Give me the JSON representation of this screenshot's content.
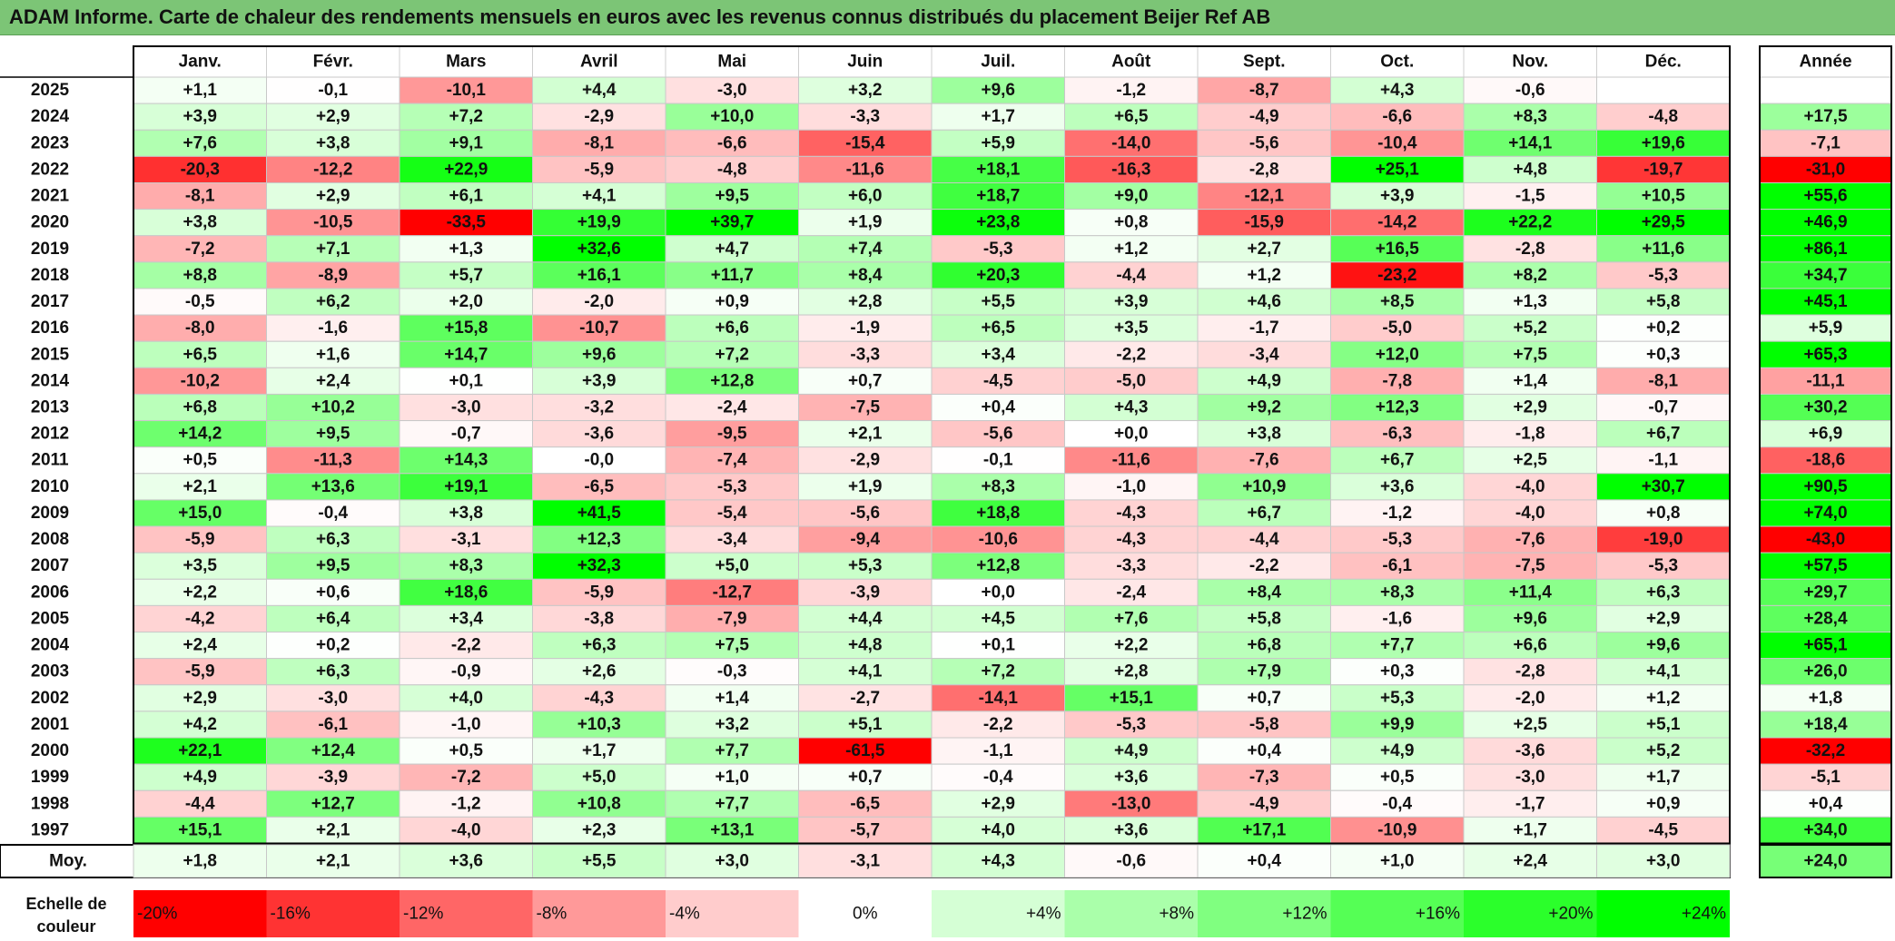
{
  "title": "ADAM Informe. Carte de chaleur des rendements mensuels en euros avec les revenus connus distribués du placement Beijer Ref AB",
  "year_header": "Année",
  "avg_label": "Moy.",
  "scale_label_line1": "Echelle de",
  "scale_label_line2": "couleur",
  "chart_data": {
    "type": "heatmap",
    "title": "ADAM Informe. Carte de chaleur des rendements mensuels en euros avec les revenus connus distribués du placement Beijer Ref AB",
    "columns": [
      "Janv.",
      "Févr.",
      "Mars",
      "Avril",
      "Mai",
      "Juin",
      "Juil.",
      "Août",
      "Sept.",
      "Oct.",
      "Nov.",
      "Déc."
    ],
    "rows": [
      {
        "year": "2025",
        "values": [
          1.1,
          -0.1,
          -10.1,
          4.4,
          -3.0,
          3.2,
          9.6,
          -1.2,
          -8.7,
          4.3,
          -0.6,
          null
        ],
        "annual": null
      },
      {
        "year": "2024",
        "values": [
          3.9,
          2.9,
          7.2,
          -2.9,
          10.0,
          -3.3,
          1.7,
          6.5,
          -4.9,
          -6.6,
          8.3,
          -4.8
        ],
        "annual": 17.5
      },
      {
        "year": "2023",
        "values": [
          7.6,
          3.8,
          9.1,
          -8.1,
          -6.6,
          -15.4,
          5.9,
          -14.0,
          -5.6,
          -10.4,
          14.1,
          19.6
        ],
        "annual": -7.1
      },
      {
        "year": "2022",
        "values": [
          -20.3,
          -12.2,
          22.9,
          -5.9,
          -4.8,
          -11.6,
          18.1,
          -16.3,
          -2.8,
          25.1,
          4.8,
          -19.7
        ],
        "annual": -31.0
      },
      {
        "year": "2021",
        "values": [
          -8.1,
          2.9,
          6.1,
          4.1,
          9.5,
          6.0,
          18.7,
          9.0,
          -12.1,
          3.9,
          -1.5,
          10.5
        ],
        "annual": 55.6
      },
      {
        "year": "2020",
        "values": [
          3.8,
          -10.5,
          -33.5,
          19.9,
          39.7,
          1.9,
          23.8,
          0.8,
          -15.9,
          -14.2,
          22.2,
          29.5
        ],
        "annual": 46.9
      },
      {
        "year": "2019",
        "values": [
          -7.2,
          7.1,
          1.3,
          32.6,
          4.7,
          7.4,
          -5.3,
          1.2,
          2.7,
          16.5,
          -2.8,
          11.6
        ],
        "annual": 86.1
      },
      {
        "year": "2018",
        "values": [
          8.8,
          -8.9,
          5.7,
          16.1,
          11.7,
          8.4,
          20.3,
          -4.4,
          1.2,
          -23.2,
          8.2,
          -5.3
        ],
        "annual": 34.7
      },
      {
        "year": "2017",
        "values": [
          -0.5,
          6.2,
          2.0,
          -2.0,
          0.9,
          2.8,
          5.5,
          3.9,
          4.6,
          8.5,
          1.3,
          5.8
        ],
        "annual": 45.1
      },
      {
        "year": "2016",
        "values": [
          -8.0,
          -1.6,
          15.8,
          -10.7,
          6.6,
          -1.9,
          6.5,
          3.5,
          -1.7,
          -5.0,
          5.2,
          0.2
        ],
        "annual": 5.9
      },
      {
        "year": "2015",
        "values": [
          6.5,
          1.6,
          14.7,
          9.6,
          7.2,
          -3.3,
          3.4,
          -2.2,
          -3.4,
          12.0,
          7.5,
          0.3
        ],
        "annual": 65.3
      },
      {
        "year": "2014",
        "values": [
          -10.2,
          2.4,
          0.1,
          3.9,
          12.8,
          0.7,
          -4.5,
          -5.0,
          4.9,
          -7.8,
          1.4,
          -8.1
        ],
        "annual": -11.1
      },
      {
        "year": "2013",
        "values": [
          6.8,
          10.2,
          -3.0,
          -3.2,
          -2.4,
          -7.5,
          0.4,
          4.3,
          9.2,
          12.3,
          2.9,
          -0.7
        ],
        "annual": 30.2
      },
      {
        "year": "2012",
        "values": [
          14.2,
          9.5,
          -0.7,
          -3.6,
          -9.5,
          2.1,
          -5.6,
          0.0,
          3.8,
          -6.3,
          -1.8,
          6.7
        ],
        "annual": 6.9
      },
      {
        "year": "2011",
        "values": [
          0.5,
          -11.3,
          14.3,
          -0.0,
          -7.4,
          -2.9,
          -0.1,
          -11.6,
          -7.6,
          6.7,
          2.5,
          -1.1
        ],
        "annual": -18.6
      },
      {
        "year": "2010",
        "values": [
          2.1,
          13.6,
          19.1,
          -6.5,
          -5.3,
          1.9,
          8.3,
          -1.0,
          10.9,
          3.6,
          -4.0,
          30.7
        ],
        "annual": 90.5
      },
      {
        "year": "2009",
        "values": [
          15.0,
          -0.4,
          3.8,
          41.5,
          -5.4,
          -5.6,
          18.8,
          -4.3,
          6.7,
          -1.2,
          -4.0,
          0.8
        ],
        "annual": 74.0
      },
      {
        "year": "2008",
        "values": [
          -5.9,
          6.3,
          -3.1,
          12.3,
          -3.4,
          -9.4,
          -10.6,
          -4.3,
          -4.4,
          -5.3,
          -7.6,
          -19.0
        ],
        "annual": -43.0
      },
      {
        "year": "2007",
        "values": [
          3.5,
          9.5,
          8.3,
          32.3,
          5.0,
          5.3,
          12.8,
          -3.3,
          -2.2,
          -6.1,
          -7.5,
          -5.3
        ],
        "annual": 57.5
      },
      {
        "year": "2006",
        "values": [
          2.2,
          0.6,
          18.6,
          -5.9,
          -12.7,
          -3.9,
          0.0,
          -2.4,
          8.4,
          8.3,
          11.4,
          6.3
        ],
        "annual": 29.7
      },
      {
        "year": "2005",
        "values": [
          -4.2,
          6.4,
          3.4,
          -3.8,
          -7.9,
          4.4,
          4.5,
          7.6,
          5.8,
          -1.6,
          9.6,
          2.9
        ],
        "annual": 28.4
      },
      {
        "year": "2004",
        "values": [
          2.4,
          0.2,
          -2.2,
          6.3,
          7.5,
          4.8,
          0.1,
          2.2,
          6.8,
          7.7,
          6.6,
          9.6
        ],
        "annual": 65.1
      },
      {
        "year": "2003",
        "values": [
          -5.9,
          6.3,
          -0.9,
          2.6,
          -0.3,
          4.1,
          7.2,
          2.8,
          7.9,
          0.3,
          -2.8,
          4.1
        ],
        "annual": 26.0
      },
      {
        "year": "2002",
        "values": [
          2.9,
          -3.0,
          4.0,
          -4.3,
          1.4,
          -2.7,
          -14.1,
          15.1,
          0.7,
          5.3,
          -2.0,
          1.2
        ],
        "annual": 1.8
      },
      {
        "year": "2001",
        "values": [
          4.2,
          -6.1,
          -1.0,
          10.3,
          3.2,
          5.1,
          -2.2,
          -5.3,
          -5.8,
          9.9,
          2.5,
          5.1
        ],
        "annual": 18.4
      },
      {
        "year": "2000",
        "values": [
          22.1,
          12.4,
          0.5,
          1.7,
          7.7,
          -61.5,
          -1.1,
          4.9,
          0.4,
          4.9,
          -3.6,
          5.2
        ],
        "annual": -32.2
      },
      {
        "year": "1999",
        "values": [
          4.9,
          -3.9,
          -7.2,
          5.0,
          1.0,
          0.7,
          -0.4,
          3.6,
          -7.3,
          0.5,
          -3.0,
          1.7
        ],
        "annual": -5.1
      },
      {
        "year": "1998",
        "values": [
          -4.4,
          12.7,
          -1.2,
          10.8,
          7.7,
          -6.5,
          2.9,
          -13.0,
          -4.9,
          -0.4,
          -1.7,
          0.9
        ],
        "annual": 0.4
      },
      {
        "year": "1997",
        "values": [
          15.1,
          2.1,
          -4.0,
          2.3,
          13.1,
          -5.7,
          4.0,
          3.6,
          17.1,
          -10.9,
          1.7,
          -4.5
        ],
        "annual": 34.0
      }
    ],
    "average": {
      "values": [
        1.8,
        2.1,
        3.6,
        5.5,
        3.0,
        -3.1,
        4.3,
        -0.6,
        0.4,
        1.0,
        2.4,
        3.0
      ],
      "annual": 24.0
    },
    "color_scale": {
      "labels": [
        "-20%",
        "-16%",
        "-12%",
        "-8%",
        "-4%",
        "0%",
        "+4%",
        "+8%",
        "+12%",
        "+16%",
        "+20%",
        "+24%"
      ],
      "values": [
        -20,
        -16,
        -12,
        -8,
        -4,
        0,
        4,
        8,
        12,
        16,
        20,
        24
      ]
    },
    "colors": {
      "negative": "#ff0000",
      "neutral": "#ffffff",
      "positive": "#00ff00",
      "title_bar": "#7cc576"
    }
  }
}
